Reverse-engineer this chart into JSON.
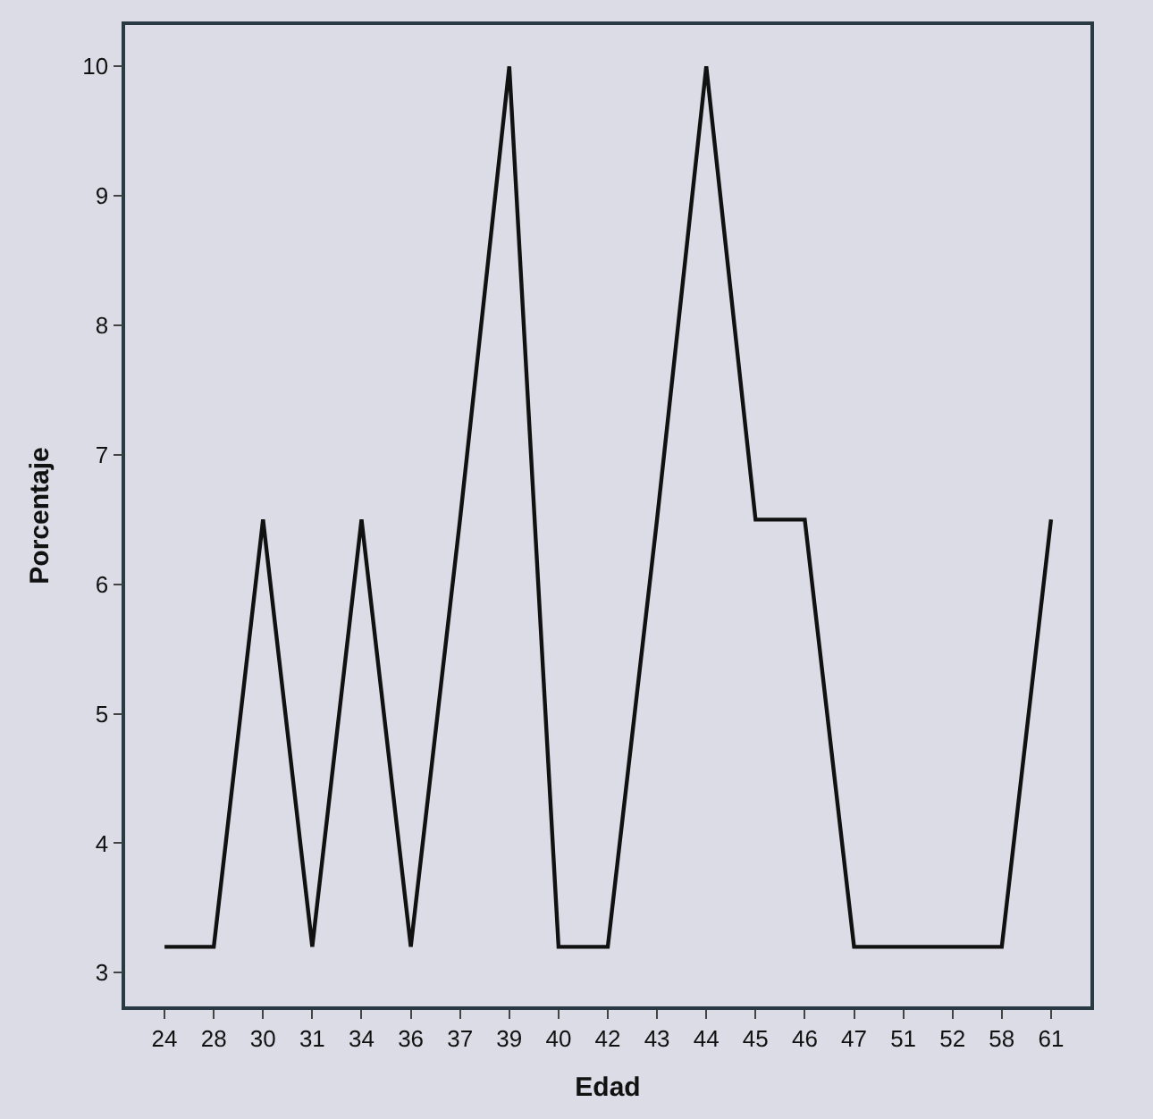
{
  "chart_data": {
    "type": "line",
    "xlabel": "Edad",
    "ylabel": "Porcentaje",
    "categories": [
      "24",
      "28",
      "30",
      "31",
      "34",
      "36",
      "37",
      "39",
      "40",
      "42",
      "43",
      "44",
      "45",
      "46",
      "47",
      "51",
      "52",
      "58",
      "61"
    ],
    "values": [
      3.2,
      3.2,
      6.5,
      3.2,
      6.5,
      3.2,
      6.5,
      10,
      3.2,
      3.2,
      6.5,
      10,
      6.5,
      6.5,
      3.2,
      3.2,
      3.2,
      3.2,
      6.5
    ],
    "color": "#111111",
    "ylim": [
      2.74,
      10.32
    ],
    "yticks": [
      3,
      4,
      5,
      6,
      7,
      8,
      9,
      10
    ],
    "grid": false,
    "legend": false,
    "marker": "none",
    "line_style": "solid"
  }
}
